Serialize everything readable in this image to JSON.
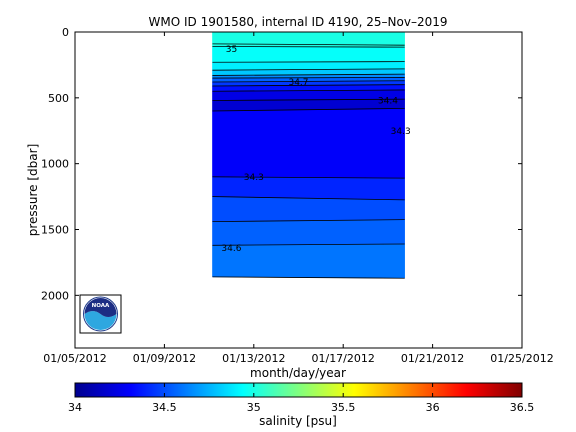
{
  "chart_data": {
    "type": "contour",
    "title": "WMO ID 1901580, internal ID 4190, 25–Nov–2019",
    "xlabel": "month/day/year",
    "ylabel": "pressure [dbar]",
    "x_ticks": [
      "01/05/2012",
      "01/09/2012",
      "01/13/2012",
      "01/17/2012",
      "01/21/2012",
      "01/25/2012"
    ],
    "x_tick_days": [
      0,
      4,
      8,
      12,
      16,
      20
    ],
    "xlim_days": [
      0,
      20
    ],
    "y_ticks": [
      0,
      500,
      1000,
      1500,
      2000
    ],
    "ylim": [
      0,
      2400
    ],
    "y_reversed": true,
    "grid": false,
    "data_x_range": [
      "01/11/2012",
      "01/20/2012"
    ],
    "data_y_range": [
      0,
      1980
    ],
    "salinity_bands": [
      {
        "top": 0,
        "bottom": 60,
        "value": 35.0
      },
      {
        "top": 60,
        "bottom": 120,
        "value": 35.0
      },
      {
        "top": 120,
        "bottom": 240,
        "value": 34.95
      },
      {
        "top": 240,
        "bottom": 300,
        "value": 34.9
      },
      {
        "top": 300,
        "bottom": 350,
        "value": 34.8
      },
      {
        "top": 350,
        "bottom": 400,
        "value": 34.65
      },
      {
        "top": 400,
        "bottom": 450,
        "value": 34.55
      },
      {
        "top": 450,
        "bottom": 520,
        "value": 34.45
      },
      {
        "top": 520,
        "bottom": 600,
        "value": 34.35
      },
      {
        "top": 600,
        "bottom": 700,
        "value": 34.25
      },
      {
        "top": 700,
        "bottom": 1100,
        "value": 34.2
      },
      {
        "top": 1100,
        "bottom": 1250,
        "value": 34.3
      },
      {
        "top": 1250,
        "bottom": 1440,
        "value": 34.4
      },
      {
        "top": 1440,
        "bottom": 1620,
        "value": 34.5
      },
      {
        "top": 1620,
        "bottom": 1860,
        "value": 34.55
      },
      {
        "top": 1860,
        "bottom": 1980,
        "value": 34.6
      }
    ],
    "contour_lines": [
      {
        "left": 90,
        "right": 100
      },
      {
        "left": 110,
        "right": 115
      },
      {
        "left": 230,
        "right": 225
      },
      {
        "left": 290,
        "right": 280
      },
      {
        "left": 330,
        "right": 320
      },
      {
        "left": 350,
        "right": 345
      },
      {
        "left": 380,
        "right": 370
      },
      {
        "left": 410,
        "right": 400
      },
      {
        "left": 450,
        "right": 440
      },
      {
        "left": 520,
        "right": 510
      },
      {
        "left": 600,
        "right": 580
      },
      {
        "left": 1100,
        "right": 1110
      },
      {
        "left": 1250,
        "right": 1275
      },
      {
        "left": 1440,
        "right": 1425
      },
      {
        "left": 1620,
        "right": 1610
      },
      {
        "left": 1860,
        "right": 1870
      }
    ],
    "contour_labels": [
      {
        "text": "35",
        "x": "01/12/2012",
        "y": 130
      },
      {
        "text": "34.7",
        "x": "01/15/2012",
        "y": 380
      },
      {
        "text": "34.4",
        "x": "01/19/2012",
        "y": 520
      },
      {
        "text": "34.3",
        "x": "01/20/2012",
        "y": 750
      },
      {
        "text": "34.3",
        "x": "01/13/2012",
        "y": 1100
      },
      {
        "text": "34.6",
        "x": "01/12/2012",
        "y": 1640
      }
    ],
    "colorbar": {
      "label": "salinity [psu]",
      "range": [
        34,
        36.5
      ],
      "ticks": [
        34,
        34.5,
        35,
        35.5,
        36,
        36.5
      ],
      "tick_labels": [
        "34",
        "34.5",
        "35",
        "35.5",
        "36",
        "36.5"
      ],
      "colormap": "jet"
    },
    "logo": "noaa-logo"
  }
}
